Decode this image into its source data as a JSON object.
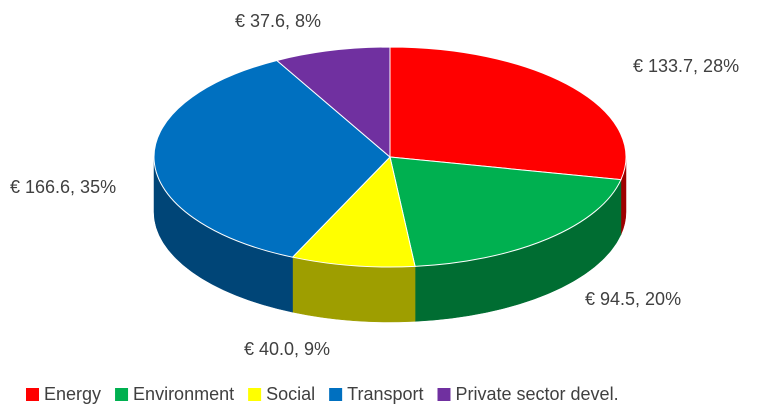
{
  "chart_data": {
    "type": "pie",
    "three_d": true,
    "categories": [
      "Energy",
      "Environment",
      "Social",
      "Transport",
      "Private sector devel."
    ],
    "values": [
      133.7,
      94.5,
      40.0,
      166.6,
      37.6
    ],
    "value_labels": [
      "€ 133.7, 28%",
      "€ 94.5, 20%",
      "€ 40.0, 9%",
      "€ 166.6, 35%",
      "€ 37.6, 8%"
    ],
    "colors": [
      "#ff0000",
      "#00b050",
      "#ffff00",
      "#0070c0",
      "#7030a0"
    ],
    "legend": "bottom"
  }
}
